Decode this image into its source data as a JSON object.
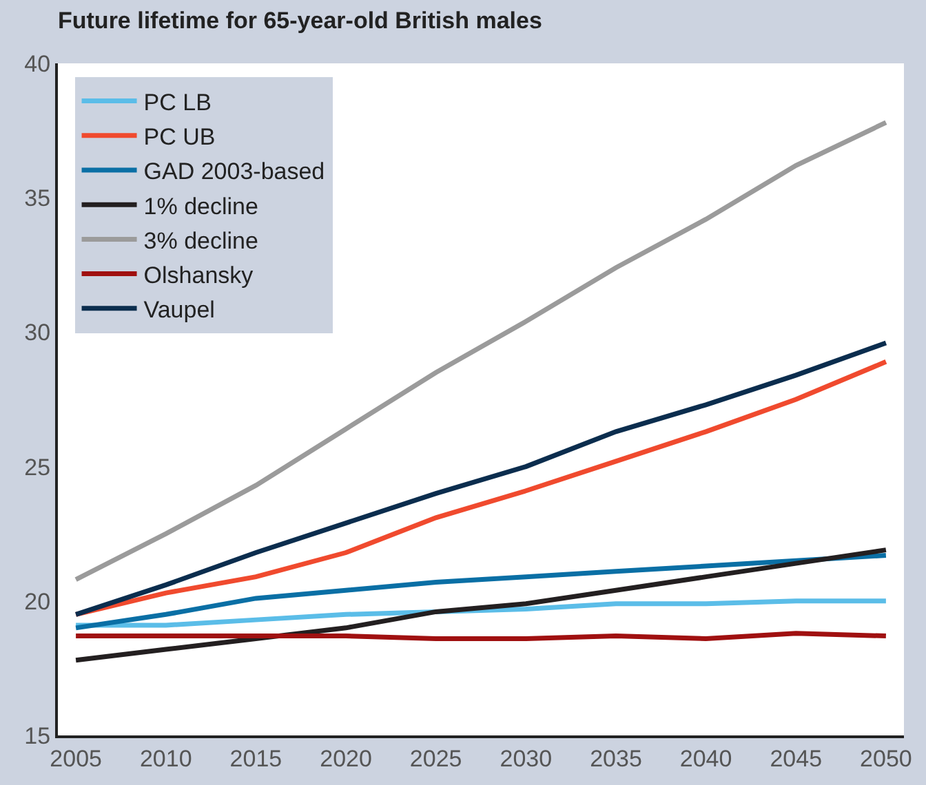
{
  "chart_data": {
    "type": "line",
    "title": "Future lifetime for 65-year-old British males",
    "x": [
      2005,
      2010,
      2015,
      2020,
      2025,
      2030,
      2035,
      2040,
      2045,
      2050
    ],
    "xlim": [
      2004,
      2051
    ],
    "xticks": [
      2005,
      2010,
      2015,
      2020,
      2025,
      2030,
      2035,
      2040,
      2045,
      2050
    ],
    "ylim": [
      15,
      40
    ],
    "yticks": [
      15,
      20,
      25,
      30,
      35,
      40
    ],
    "legend": "top left",
    "marker": "none",
    "line_style": "solid",
    "series": [
      {
        "name": "PC LB",
        "color": "#5bbde8",
        "values": [
          19.1,
          19.1,
          19.3,
          19.5,
          19.6,
          19.7,
          19.9,
          19.9,
          20.0,
          20.0
        ]
      },
      {
        "name": "PC UB",
        "color": "#f04a2e",
        "values": [
          19.5,
          20.3,
          20.9,
          21.8,
          23.1,
          24.1,
          25.2,
          26.3,
          27.5,
          28.9
        ]
      },
      {
        "name": "GAD 2003-based",
        "color": "#0a6fa5",
        "values": [
          19.0,
          19.5,
          20.1,
          20.4,
          20.7,
          20.9,
          21.1,
          21.3,
          21.5,
          21.7
        ]
      },
      {
        "name": "1% decline",
        "color": "#231f20",
        "values": [
          17.8,
          18.2,
          18.6,
          19.0,
          19.6,
          19.9,
          20.4,
          20.9,
          21.4,
          21.9
        ]
      },
      {
        "name": "3% decline",
        "color": "#9b9b9b",
        "values": [
          20.8,
          22.5,
          24.3,
          26.4,
          28.5,
          30.4,
          32.4,
          34.2,
          36.2,
          37.8
        ]
      },
      {
        "name": "Olshansky",
        "color": "#a01010",
        "values": [
          18.7,
          18.7,
          18.7,
          18.7,
          18.6,
          18.6,
          18.7,
          18.6,
          18.8,
          18.7
        ]
      },
      {
        "name": "Vaupel",
        "color": "#0b2d4e",
        "values": [
          19.5,
          20.6,
          21.8,
          22.9,
          24.0,
          25.0,
          26.3,
          27.3,
          28.4,
          29.6
        ]
      }
    ]
  }
}
